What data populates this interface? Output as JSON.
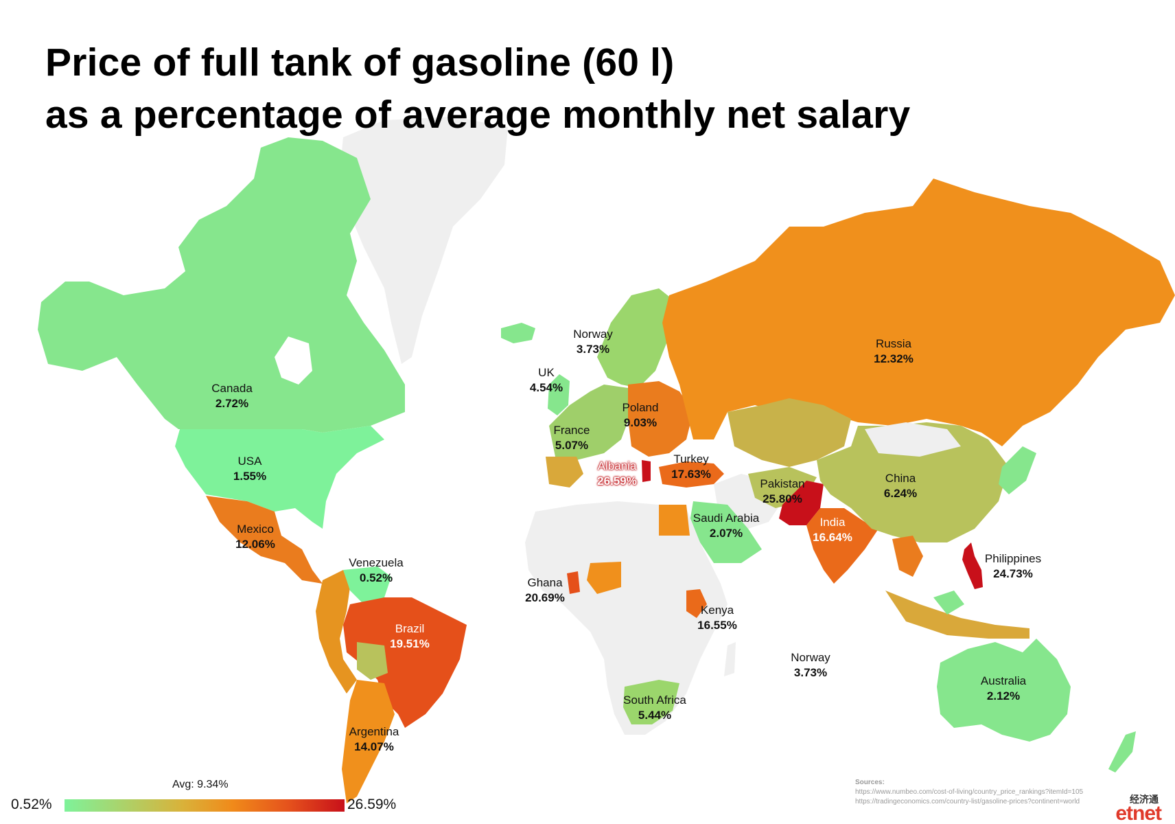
{
  "title_line1": "Price of full tank of gasoline (60 l)",
  "title_line2": "as a percentage of average monthly net salary",
  "colors": {
    "green": "#7ef29a",
    "light_green": "#86e68d",
    "olive": "#b8c25c",
    "mustard": "#d9a83a",
    "orange": "#f0901c",
    "dark_orange": "#ea6a1a",
    "red_orange": "#e5501a",
    "red": "#c8101a",
    "no_data": "#efefef"
  },
  "countries": [
    {
      "id": "canada",
      "name": "Canada",
      "value": "2.72%"
    },
    {
      "id": "usa",
      "name": "USA",
      "value": "1.55%"
    },
    {
      "id": "mexico",
      "name": "Mexico",
      "value": "12.06%"
    },
    {
      "id": "venezuela",
      "name": "Venezuela",
      "value": "0.52%"
    },
    {
      "id": "brazil",
      "name": "Brazil",
      "value": "19.51%"
    },
    {
      "id": "argentina",
      "name": "Argentina",
      "value": "14.07%"
    },
    {
      "id": "norway",
      "name": "Norway",
      "value": "3.73%"
    },
    {
      "id": "uk",
      "name": "UK",
      "value": "4.54%"
    },
    {
      "id": "france",
      "name": "France",
      "value": "5.07%"
    },
    {
      "id": "poland",
      "name": "Poland",
      "value": "9.03%"
    },
    {
      "id": "albania",
      "name": "Albania",
      "value": "26.59%"
    },
    {
      "id": "turkey",
      "name": "Turkey",
      "value": "17.63%"
    },
    {
      "id": "russia",
      "name": "Russia",
      "value": "12.32%"
    },
    {
      "id": "pakistan",
      "name": "Pakistan",
      "value": "25.80%"
    },
    {
      "id": "saudi-arabia",
      "name": "Saudi Arabia",
      "value": "2.07%"
    },
    {
      "id": "india",
      "name": "India",
      "value": "16.64%"
    },
    {
      "id": "china",
      "name": "China",
      "value": "6.24%"
    },
    {
      "id": "philippines",
      "name": "Philippines",
      "value": "24.73%"
    },
    {
      "id": "ghana",
      "name": "Ghana",
      "value": "20.69%"
    },
    {
      "id": "kenya",
      "name": "Kenya",
      "value": "16.55%"
    },
    {
      "id": "south-africa",
      "name": "South Africa",
      "value": "5.44%"
    },
    {
      "id": "norway-2",
      "name": "Norway",
      "value": "3.73%"
    },
    {
      "id": "australia",
      "name": "Australia",
      "value": "2.12%"
    }
  ],
  "legend": {
    "min": "0.52%",
    "max": "26.59%",
    "avg": "Avg: 9.34%"
  },
  "sources": {
    "heading": "Sources:",
    "line1": "https://www.numbeo.com/cost-of-living/country_price_rankings?itemId=105",
    "line2": "https://tradingeconomics.com/country-list/gasoline-prices?continent=world"
  },
  "logo": {
    "chinese": "经济通",
    "text": "etnet"
  }
}
